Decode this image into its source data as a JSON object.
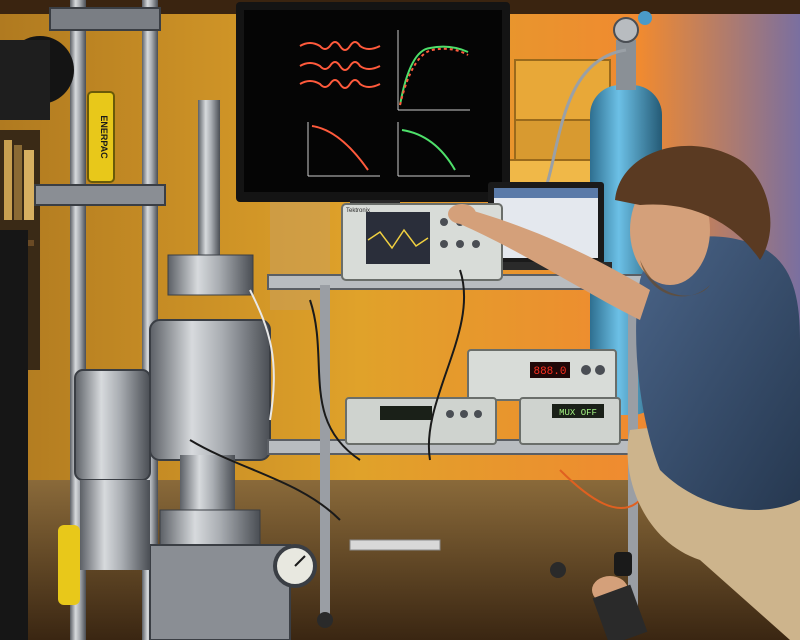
{
  "scene": {
    "labels": {
      "jack_brand": "ENERPAC",
      "scope_brand": "Tektronix",
      "power_supply_readout": "888.0",
      "multimeter_readout": "MUX OFF"
    },
    "colors": {
      "wall_warm": "#e0a22a",
      "wall_orange": "#f08a30",
      "floor": "#6b4a2a",
      "shirt": "#3a4f6e",
      "pants": "#cdb48c",
      "hair": "#5a3a22",
      "skin": "#d4a07a",
      "steel": "#a9adb2",
      "trace_red": "#ff5a3c",
      "trace_green": "#4ee06a",
      "cylinder_blue": "#4aa0c8",
      "jack_yellow": "#e8c81a"
    }
  }
}
